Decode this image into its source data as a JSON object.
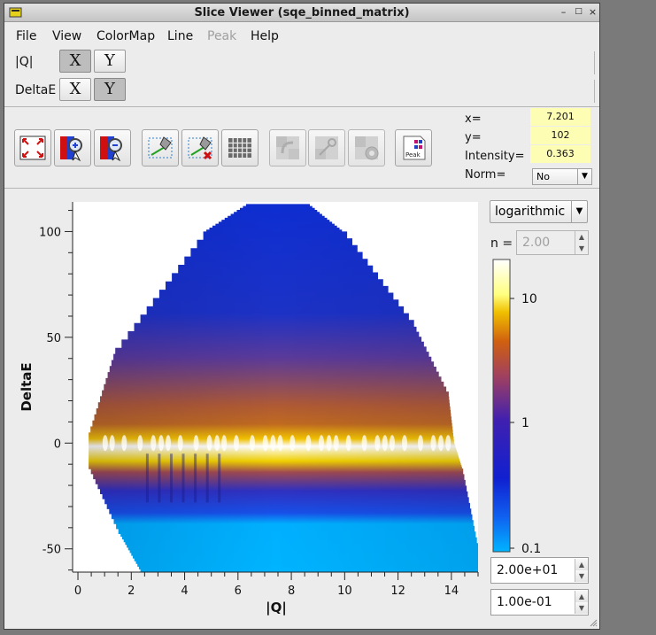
{
  "window": {
    "title": "Slice Viewer (sqe_binned_matrix)"
  },
  "menu": [
    "File",
    "View",
    "ColorMap",
    "Line",
    "Peak",
    "Help"
  ],
  "menu_disabled": [
    "Peak"
  ],
  "dims": [
    {
      "name": "|Q|",
      "x_label": "X",
      "y_label": "Y",
      "selected": "X"
    },
    {
      "name": "DeltaE",
      "x_label": "X",
      "y_label": "Y",
      "selected": "Y"
    }
  ],
  "toolbar": {
    "buttons": [
      "zoom-to-fit",
      "zoom-in",
      "zoom-out",
      "line-cut",
      "clear-line",
      "grid",
      "rebin",
      "pick",
      "snap",
      "peak-overlay"
    ],
    "peak_label": "Peak"
  },
  "info": {
    "x_label": "x=",
    "x_value": "7.201",
    "y_label": "y=",
    "y_value": "102",
    "intensity_label": "Intensity=",
    "intensity_value": "0.363",
    "norm_label": "Norm=",
    "norm_value": "No"
  },
  "colorbar": {
    "scale": "logarithmic",
    "n_label": "n =",
    "n_value": "2.00",
    "max_value": "2.00e+01",
    "min_value": "1.00e-01",
    "ticks": [
      "10",
      "1",
      "0.1"
    ]
  },
  "colors": {
    "colormap": [
      "#00b4ff",
      "#1060f0",
      "#1020d0",
      "#4020b0",
      "#a04060",
      "#d06010",
      "#f0c000",
      "#ffff80",
      "#ffffff"
    ]
  },
  "chart_data": {
    "type": "heatmap",
    "xlabel": "|Q|",
    "ylabel": "DeltaE",
    "xlim": [
      -0.2,
      15
    ],
    "ylim": [
      -61,
      114
    ],
    "xticks": [
      0,
      2,
      4,
      6,
      8,
      10,
      12,
      14
    ],
    "yticks": [
      -50,
      0,
      50,
      100
    ],
    "xtick_labels": [
      "0",
      "2",
      "4",
      "6",
      "8",
      "10",
      "12",
      "14"
    ],
    "ytick_labels": [
      "-50",
      "0",
      "50",
      "100"
    ],
    "coverage": {
      "upper_edge": [
        [
          2.4,
          -61
        ],
        [
          1.6,
          -43
        ],
        [
          0.4,
          -10
        ],
        [
          0.4,
          5
        ],
        [
          1.4,
          45
        ],
        [
          4.7,
          100
        ],
        [
          6.3,
          113
        ],
        [
          8.6,
          113
        ],
        [
          9.9,
          100
        ],
        [
          12.6,
          55
        ],
        [
          13.9,
          22
        ],
        [
          14.1,
          0
        ],
        [
          14.4,
          -12
        ],
        [
          15.0,
          -50
        ],
        [
          15.0,
          -61
        ]
      ]
    },
    "elastic_line_center": 0,
    "grid": false
  }
}
